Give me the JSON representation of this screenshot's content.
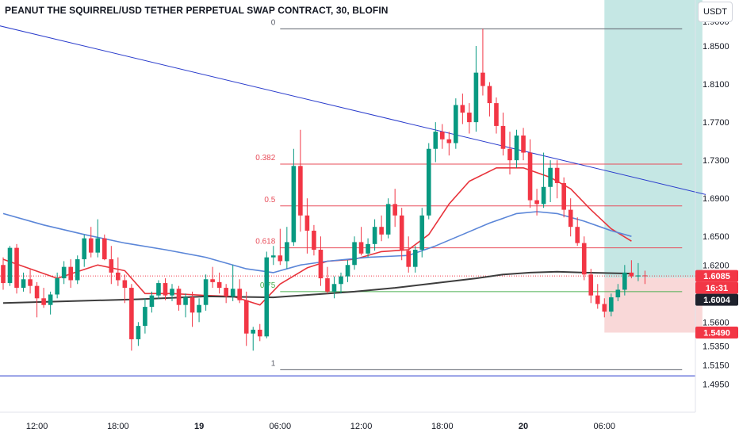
{
  "chart_data": {
    "type": "candlestick",
    "title": "PEANUT THE SQUIRREL/USD TETHER PERPETUAL SWAP CONTRACT, 30, BLOFIN",
    "currency_label": "USDT",
    "interval": "30",
    "y_axis": {
      "range": [
        1.477,
        1.875
      ],
      "ticks": [
        "1.8500",
        "1.8100",
        "1.7700",
        "1.7300",
        "1.6900",
        "1.6500",
        "1.6200",
        "1.5600",
        "1.5350",
        "1.5150",
        "1.4950"
      ],
      "top_cut_label": "1.9000"
    },
    "x_axis": {
      "ticks": [
        {
          "label": "12:00",
          "bold": false,
          "i": 5
        },
        {
          "label": "18:00",
          "bold": false,
          "i": 17
        },
        {
          "label": "19",
          "bold": true,
          "i": 29
        },
        {
          "label": "06:00",
          "bold": false,
          "i": 41
        },
        {
          "label": "12:00",
          "bold": false,
          "i": 53
        },
        {
          "label": "18:00",
          "bold": false,
          "i": 65
        },
        {
          "label": "20",
          "bold": true,
          "i": 77
        },
        {
          "label": "06:00",
          "bold": false,
          "i": 89
        }
      ]
    },
    "candles": [
      [
        1.62,
        1.628,
        1.594,
        1.601
      ],
      [
        1.601,
        1.64,
        1.598,
        1.638
      ],
      [
        1.638,
        1.642,
        1.59,
        1.596
      ],
      [
        1.596,
        1.612,
        1.592,
        1.605
      ],
      [
        1.605,
        1.615,
        1.59,
        1.598
      ],
      [
        1.598,
        1.602,
        1.565,
        1.585
      ],
      [
        1.585,
        1.596,
        1.575,
        1.578
      ],
      [
        1.578,
        1.592,
        1.568,
        1.589
      ],
      [
        1.589,
        1.612,
        1.585,
        1.606
      ],
      [
        1.606,
        1.624,
        1.6,
        1.618
      ],
      [
        1.618,
        1.626,
        1.596,
        1.604
      ],
      [
        1.604,
        1.63,
        1.6,
        1.626
      ],
      [
        1.626,
        1.652,
        1.618,
        1.648
      ],
      [
        1.648,
        1.66,
        1.628,
        1.633
      ],
      [
        1.633,
        1.668,
        1.628,
        1.648
      ],
      [
        1.648,
        1.652,
        1.625,
        1.626
      ],
      [
        1.626,
        1.64,
        1.6,
        1.612
      ],
      [
        1.612,
        1.628,
        1.598,
        1.604
      ],
      [
        1.604,
        1.61,
        1.58,
        1.596
      ],
      [
        1.596,
        1.6,
        1.53,
        1.542
      ],
      [
        1.542,
        1.56,
        1.535,
        1.556
      ],
      [
        1.556,
        1.585,
        1.548,
        1.576
      ],
      [
        1.576,
        1.592,
        1.57,
        1.588
      ],
      [
        1.588,
        1.604,
        1.584,
        1.601
      ],
      [
        1.601,
        1.606,
        1.583,
        1.588
      ],
      [
        1.588,
        1.6,
        1.582,
        1.595
      ],
      [
        1.595,
        1.598,
        1.572,
        1.578
      ],
      [
        1.578,
        1.59,
        1.565,
        1.586
      ],
      [
        1.586,
        1.592,
        1.555,
        1.57
      ],
      [
        1.57,
        1.585,
        1.56,
        1.578
      ],
      [
        1.578,
        1.61,
        1.572,
        1.605
      ],
      [
        1.605,
        1.618,
        1.596,
        1.602
      ],
      [
        1.602,
        1.612,
        1.59,
        1.596
      ],
      [
        1.596,
        1.6,
        1.58,
        1.587
      ],
      [
        1.587,
        1.62,
        1.582,
        1.595
      ],
      [
        1.595,
        1.605,
        1.58,
        1.583
      ],
      [
        1.583,
        1.592,
        1.535,
        1.548
      ],
      [
        1.548,
        1.555,
        1.53,
        1.552
      ],
      [
        1.552,
        1.558,
        1.54,
        1.545
      ],
      [
        1.545,
        1.634,
        1.543,
        1.628
      ],
      [
        1.628,
        1.64,
        1.62,
        1.63
      ],
      [
        1.63,
        1.658,
        1.62,
        1.624
      ],
      [
        1.624,
        1.66,
        1.616,
        1.644
      ],
      [
        1.644,
        1.742,
        1.64,
        1.724
      ],
      [
        1.724,
        1.762,
        1.655,
        1.672
      ],
      [
        1.672,
        1.69,
        1.632,
        1.656
      ],
      [
        1.656,
        1.662,
        1.63,
        1.636
      ],
      [
        1.636,
        1.65,
        1.598,
        1.606
      ],
      [
        1.606,
        1.618,
        1.59,
        1.592
      ],
      [
        1.592,
        1.608,
        1.585,
        1.6
      ],
      [
        1.6,
        1.612,
        1.59,
        1.608
      ],
      [
        1.608,
        1.625,
        1.602,
        1.62
      ],
      [
        1.62,
        1.65,
        1.615,
        1.644
      ],
      [
        1.644,
        1.66,
        1.63,
        1.632
      ],
      [
        1.632,
        1.648,
        1.628,
        1.642
      ],
      [
        1.642,
        1.668,
        1.635,
        1.66
      ],
      [
        1.66,
        1.672,
        1.645,
        1.652
      ],
      [
        1.652,
        1.69,
        1.648,
        1.684
      ],
      [
        1.684,
        1.7,
        1.66,
        1.672
      ],
      [
        1.672,
        1.68,
        1.625,
        1.635
      ],
      [
        1.635,
        1.65,
        1.612,
        1.618
      ],
      [
        1.618,
        1.64,
        1.612,
        1.636
      ],
      [
        1.636,
        1.68,
        1.628,
        1.672
      ],
      [
        1.672,
        1.748,
        1.668,
        1.742
      ],
      [
        1.742,
        1.77,
        1.728,
        1.76
      ],
      [
        1.76,
        1.768,
        1.742,
        1.752
      ],
      [
        1.752,
        1.76,
        1.735,
        1.748
      ],
      [
        1.748,
        1.795,
        1.742,
        1.788
      ],
      [
        1.788,
        1.8,
        1.768,
        1.78
      ],
      [
        1.78,
        1.79,
        1.758,
        1.77
      ],
      [
        1.77,
        1.85,
        1.76,
        1.822
      ],
      [
        1.822,
        1.868,
        1.798,
        1.808
      ],
      [
        1.808,
        1.812,
        1.776,
        1.79
      ],
      [
        1.79,
        1.796,
        1.758,
        1.766
      ],
      [
        1.766,
        1.78,
        1.735,
        1.742
      ],
      [
        1.742,
        1.76,
        1.715,
        1.73
      ],
      [
        1.73,
        1.762,
        1.722,
        1.756
      ],
      [
        1.756,
        1.764,
        1.73,
        1.738
      ],
      [
        1.738,
        1.752,
        1.68,
        1.688
      ],
      [
        1.688,
        1.7,
        1.672,
        1.684
      ],
      [
        1.684,
        1.738,
        1.68,
        1.702
      ],
      [
        1.702,
        1.73,
        1.686,
        1.722
      ],
      [
        1.722,
        1.73,
        1.69,
        1.706
      ],
      [
        1.706,
        1.712,
        1.67,
        1.678
      ],
      [
        1.678,
        1.69,
        1.65,
        1.66
      ],
      [
        1.66,
        1.67,
        1.64,
        1.643
      ],
      [
        1.643,
        1.65,
        1.604,
        1.61
      ],
      [
        1.61,
        1.616,
        1.58,
        1.588
      ],
      [
        1.588,
        1.6,
        1.574,
        1.579
      ],
      [
        1.579,
        1.585,
        1.565,
        1.571
      ],
      [
        1.571,
        1.59,
        1.566,
        1.586
      ],
      [
        1.586,
        1.6,
        1.582,
        1.594
      ],
      [
        1.594,
        1.62,
        1.588,
        1.612
      ],
      [
        1.612,
        1.625,
        1.606,
        1.608
      ],
      [
        1.608,
        1.622,
        1.603,
        1.609
      ],
      [
        1.609,
        1.614,
        1.6,
        1.6085
      ]
    ],
    "moving_averages": [
      {
        "color": "#e8333b",
        "values": [
          [
            0,
            1.626
          ],
          [
            8,
            1.606
          ],
          [
            14,
            1.62
          ],
          [
            18,
            1.614
          ],
          [
            21,
            1.59
          ],
          [
            25,
            1.59
          ],
          [
            30,
            1.588
          ],
          [
            34,
            1.587
          ],
          [
            38,
            1.578
          ],
          [
            41,
            1.6
          ],
          [
            45,
            1.617
          ],
          [
            48,
            1.624
          ],
          [
            52,
            1.626
          ],
          [
            56,
            1.634
          ],
          [
            60,
            1.636
          ],
          [
            63,
            1.652
          ],
          [
            66,
            1.684
          ],
          [
            69,
            1.708
          ],
          [
            73,
            1.722
          ],
          [
            77,
            1.722
          ],
          [
            81,
            1.712
          ],
          [
            84,
            1.7
          ],
          [
            87,
            1.678
          ],
          [
            90,
            1.658
          ],
          [
            93,
            1.645
          ]
        ]
      },
      {
        "color": "#5b86d8",
        "values": [
          [
            0,
            1.674
          ],
          [
            6,
            1.662
          ],
          [
            12,
            1.652
          ],
          [
            18,
            1.643
          ],
          [
            24,
            1.636
          ],
          [
            30,
            1.628
          ],
          [
            36,
            1.616
          ],
          [
            40,
            1.612
          ],
          [
            44,
            1.62
          ],
          [
            48,
            1.624
          ],
          [
            54,
            1.628
          ],
          [
            60,
            1.63
          ],
          [
            64,
            1.64
          ],
          [
            68,
            1.652
          ],
          [
            72,
            1.664
          ],
          [
            76,
            1.674
          ],
          [
            79,
            1.676
          ],
          [
            82,
            1.674
          ],
          [
            86,
            1.666
          ],
          [
            90,
            1.656
          ],
          [
            93,
            1.65
          ]
        ]
      },
      {
        "color": "#3d3d3d",
        "values": [
          [
            0,
            1.58
          ],
          [
            10,
            1.582
          ],
          [
            20,
            1.584
          ],
          [
            30,
            1.587
          ],
          [
            40,
            1.586
          ],
          [
            46,
            1.589
          ],
          [
            52,
            1.592
          ],
          [
            58,
            1.596
          ],
          [
            64,
            1.601
          ],
          [
            70,
            1.606
          ],
          [
            74,
            1.61
          ],
          [
            78,
            1.612
          ],
          [
            82,
            1.613
          ],
          [
            86,
            1.612
          ],
          [
            93,
            1.611
          ]
        ]
      }
    ],
    "trendline": {
      "color": "#2a3ccc",
      "from": [
        -1,
        1.872
      ],
      "to": [
        104,
        1.694
      ]
    },
    "bottom_line": {
      "color": "#2a3ccc",
      "value": 1.5035
    },
    "fibonacci": {
      "from_i": 41,
      "to_i": 100.5,
      "levels": [
        {
          "label": "0",
          "value": 1.868,
          "color": "#5d606b"
        },
        {
          "label": "0.382",
          "value": 1.726,
          "color": "#e84d5a"
        },
        {
          "label": "0.5",
          "value": 1.682,
          "color": "#e84d5a"
        },
        {
          "label": "0.618",
          "value": 1.638,
          "color": "#e84d5a"
        },
        {
          "label": "0.75",
          "value": 1.592,
          "color": "#4caf50"
        },
        {
          "label": "1",
          "value": 1.51,
          "color": "#5d606b"
        }
      ]
    },
    "position": {
      "from_i": 89,
      "to_i": 103.5,
      "entry": 1.6066,
      "target": 1.9,
      "stop": 1.549,
      "profit_color": "#b2dfdb",
      "loss_color": "#f8d1d1"
    },
    "price_tags": [
      {
        "label": "1.6085",
        "value": 1.6085,
        "color": "#f23645",
        "text_color": "#ffffff"
      },
      {
        "label": "16:31",
        "value": 1.6049,
        "color": "#f23645",
        "text_color": "#ffffff"
      },
      {
        "label": "1.6004",
        "value": 1.6004,
        "color": "#1e222d",
        "text_color": "#ffffff"
      },
      {
        "label": "1.5490",
        "value": 1.549,
        "color": "#f23645",
        "text_color": "#ffffff"
      }
    ],
    "last_price": 1.6085,
    "colors": {
      "up": "#089981",
      "down": "#f23645"
    }
  }
}
